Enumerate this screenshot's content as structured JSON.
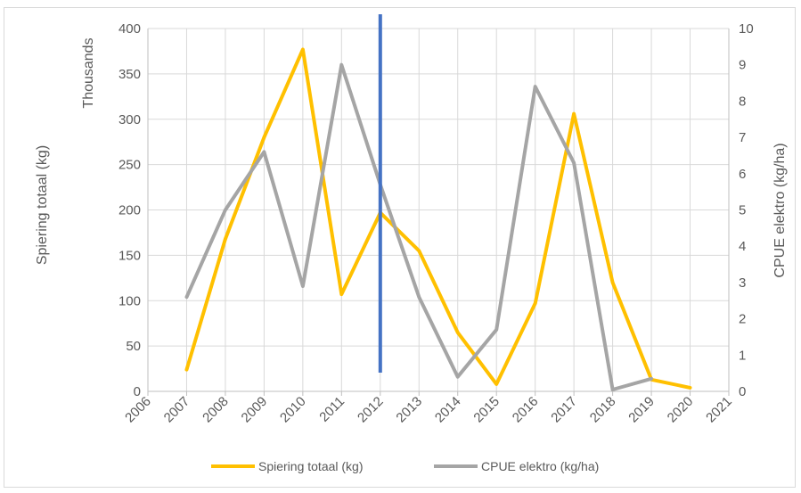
{
  "chart_data": {
    "type": "line",
    "x": [
      "2006",
      "2007",
      "2008",
      "2009",
      "2010",
      "2011",
      "2012",
      "2013",
      "2014",
      "2015",
      "2016",
      "2017",
      "2018",
      "2019",
      "2020",
      "2021"
    ],
    "series": [
      {
        "name": "Spiering totaal (kg)",
        "axis": "left",
        "color": "#FFC000",
        "x": [
          2007,
          2008,
          2009,
          2010,
          2011,
          2012,
          2013,
          2014,
          2015,
          2016,
          2017,
          2018,
          2019,
          2020
        ],
        "values": [
          24000,
          168000,
          280000,
          377000,
          107000,
          197000,
          155000,
          65000,
          8000,
          97000,
          306000,
          120000,
          13000,
          4000
        ]
      },
      {
        "name": "CPUE elektro (kg/ha)",
        "axis": "right",
        "color": "#A5A5A5",
        "x": [
          2007,
          2008,
          2009,
          2010,
          2011,
          2012,
          2013,
          2014,
          2015,
          2016,
          2017,
          2018,
          2019
        ],
        "values": [
          2.6,
          5.0,
          6.6,
          2.9,
          9.0,
          5.7,
          2.6,
          0.4,
          1.7,
          8.4,
          6.3,
          0.05,
          0.35
        ]
      }
    ],
    "y_left": {
      "label": "Spiering totaal (kg)",
      "unit_label": "Thousands",
      "ticks": [
        "0",
        "50",
        "100",
        "150",
        "200",
        "250",
        "300",
        "350",
        "400"
      ],
      "range": [
        0,
        400000
      ]
    },
    "y_right": {
      "label": "CPUE elektro (kg/ha)",
      "ticks": [
        "0",
        "1",
        "2",
        "3",
        "4",
        "5",
        "6",
        "7",
        "8",
        "9",
        "10"
      ],
      "range": [
        0,
        10
      ]
    },
    "x_range": [
      2006,
      2021
    ],
    "vertical_marker": {
      "x": 2012,
      "color": "#4472C4"
    },
    "grid": true,
    "legend_position": "bottom"
  }
}
